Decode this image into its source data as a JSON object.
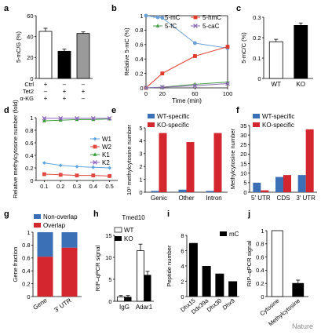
{
  "watermark": "Nature",
  "colors": {
    "black": "#000000",
    "grey": "#9a9a9a",
    "mC": "#6aa0d8",
    "hmC": "#e03a2a",
    "fC": "#46a046",
    "caC": "#8a6ab0",
    "W1": "#5ea4df",
    "W2": "#e04a40",
    "K1": "#3aa03a",
    "K2": "#8f63c1",
    "wt_spec": "#3b6fb6",
    "ko_spec": "#d3262e",
    "nonoverlap": "#3b6fb6",
    "overlap": "#d3262e"
  },
  "chart_data": [
    {
      "panel": "a",
      "type": "bar",
      "ylabel": "5-mC/G (%)",
      "ylim": [
        0,
        60
      ],
      "yticks": [
        0,
        20,
        40,
        60
      ],
      "values": [
        45,
        26,
        43
      ],
      "errors": [
        3,
        2,
        1.5
      ],
      "fills": [
        "#ffffff",
        "#000000",
        "#9a9a9a"
      ],
      "condition_rows": [
        {
          "label": "Ctrl",
          "marks": [
            "+",
            "–",
            "–"
          ]
        },
        {
          "label": "Tet2",
          "marks": [
            "–",
            "+",
            "+"
          ]
        },
        {
          "label": "α-KG",
          "marks": [
            "+",
            "+",
            "–"
          ]
        }
      ]
    },
    {
      "panel": "b",
      "type": "line",
      "ylabel": "Relative 5-mC (%)",
      "xlabel": "Time (min)",
      "xlim": [
        0,
        100
      ],
      "ylim": [
        0,
        1.0
      ],
      "xticks": [
        0,
        20,
        60,
        100
      ],
      "yticks": [
        0,
        0.2,
        0.4,
        0.6,
        0.8,
        1.0
      ],
      "x": [
        0,
        20,
        60,
        100
      ],
      "series": [
        {
          "name": "5-mC",
          "values": [
            1.0,
            0.97,
            0.62,
            0.55
          ],
          "marker": "circle",
          "color": "#6aa0d8"
        },
        {
          "name": "5-hmC",
          "values": [
            0,
            0.2,
            0.44,
            0.57
          ],
          "marker": "square",
          "color": "#e03a2a"
        },
        {
          "name": "5-fC",
          "values": [
            0,
            0.01,
            0.05,
            0.08
          ],
          "marker": "triangle",
          "color": "#46a046"
        },
        {
          "name": "5-caC",
          "values": [
            0,
            0.01,
            0.03,
            0.06
          ],
          "marker": "x",
          "color": "#8a6ab0"
        }
      ]
    },
    {
      "panel": "c",
      "type": "bar",
      "ylabel": "5-mC/C (%)",
      "ylim": [
        0,
        0.3
      ],
      "yticks": [
        0,
        0.1,
        0.2,
        0.3
      ],
      "categories": [
        "WT",
        "KO"
      ],
      "values": [
        0.18,
        0.26
      ],
      "errors": [
        0.012,
        0.012
      ],
      "fills": [
        "#ffffff",
        "#000000"
      ]
    },
    {
      "panel": "d",
      "type": "line",
      "ylabel": "Relative methylcytosine number (fold)",
      "xlim": [
        0.05,
        0.55
      ],
      "ylim": [
        0,
        1.0
      ],
      "xticks": [
        0.1,
        0.2,
        0.3,
        0.4,
        0.5
      ],
      "yticks": [
        0,
        0.2,
        0.4,
        0.6,
        0.8,
        1.0
      ],
      "x": [
        0.1,
        0.2,
        0.3,
        0.4,
        0.5
      ],
      "series": [
        {
          "name": "W1",
          "values": [
            0.28,
            0.24,
            0.22,
            0.21,
            0.2
          ],
          "marker": "diamond",
          "color": "#5ea4df"
        },
        {
          "name": "W2",
          "values": [
            0.1,
            0.09,
            0.08,
            0.08,
            0.07
          ],
          "marker": "square",
          "color": "#e04a40"
        },
        {
          "name": "K1",
          "values": [
            0.95,
            0.96,
            0.97,
            0.97,
            0.98
          ],
          "marker": "triangle",
          "color": "#3aa03a"
        },
        {
          "name": "K2",
          "values": [
            0.99,
            0.99,
            0.99,
            0.99,
            0.99
          ],
          "marker": "x",
          "color": "#8f63c1"
        }
      ]
    },
    {
      "panel": "e",
      "type": "bar",
      "ylabel": "10³ methylcytosine number",
      "ylim": [
        0,
        5
      ],
      "yticks": [
        0,
        1,
        2,
        3,
        4,
        5
      ],
      "categories": [
        "Genic",
        "Other",
        "Intron"
      ],
      "series": [
        {
          "name": "WT-specific",
          "values": [
            0.1,
            0.2,
            0.1
          ],
          "color": "#3b6fb6"
        },
        {
          "name": "KO-specific",
          "values": [
            4.6,
            3.9,
            4.6
          ],
          "color": "#d3262e"
        }
      ]
    },
    {
      "panel": "f",
      "type": "bar",
      "ylabel": "Methylcytosine number",
      "ylim": [
        0,
        35
      ],
      "yticks": [
        0,
        5,
        10,
        15,
        20,
        25,
        30,
        35
      ],
      "categories": [
        "5′ UTR",
        "CDS",
        "3′ UTR"
      ],
      "series": [
        {
          "name": "WT-specific",
          "values": [
            5,
            8,
            9
          ],
          "color": "#3b6fb6"
        },
        {
          "name": "KO-specific",
          "values": [
            1,
            9,
            33
          ],
          "color": "#d3262e"
        }
      ]
    },
    {
      "panel": "g",
      "type": "bar",
      "ylabel": "Gene fraction",
      "ylim": [
        0,
        1.0
      ],
      "yticks": [
        0,
        0.2,
        0.4,
        0.6,
        0.8,
        1.0
      ],
      "categories": [
        "Gene",
        "3′ UTR"
      ],
      "series": [
        {
          "name": "Non-overlap",
          "values": [
            0.38,
            0.24
          ],
          "color": "#3b6fb6"
        },
        {
          "name": "Overlap",
          "values": [
            0.62,
            0.76
          ],
          "color": "#d3262e"
        }
      ]
    },
    {
      "panel": "h",
      "type": "bar",
      "title": "Tmed10",
      "ylabel": "RIP–qPCR signal",
      "ylim": [
        0,
        15
      ],
      "yticks": [
        0,
        5,
        10,
        15
      ],
      "categories": [
        "IgG",
        "Adar1"
      ],
      "series": [
        {
          "name": "WT",
          "values": [
            1,
            11.5
          ],
          "errors": [
            0.3,
            1.5
          ],
          "color": "#ffffff"
        },
        {
          "name": "KO",
          "values": [
            1,
            6
          ],
          "errors": [
            0.3,
            0.8
          ],
          "color": "#000000"
        }
      ]
    },
    {
      "panel": "i",
      "type": "bar",
      "ylabel": "Peptide number",
      "ylim": [
        0,
        8
      ],
      "yticks": [
        0,
        2,
        4,
        6,
        8
      ],
      "categories": [
        "Dhx15",
        "Ddx39a",
        "Dhx30",
        "Dhx9"
      ],
      "values": [
        7,
        4,
        3,
        2
      ],
      "legend": [
        "mC"
      ]
    },
    {
      "panel": "j",
      "type": "bar",
      "ylabel": "RIP–qPCR signal",
      "ylim": [
        0,
        1.0
      ],
      "yticks": [
        0,
        0.2,
        0.4,
        0.6,
        0.8,
        1.0
      ],
      "categories": [
        "Cytosine",
        "Methylcytosine"
      ],
      "values": [
        1.0,
        0.2
      ],
      "errors": [
        0,
        0.05
      ],
      "fills": [
        "#ffffff",
        "#000000"
      ]
    }
  ]
}
